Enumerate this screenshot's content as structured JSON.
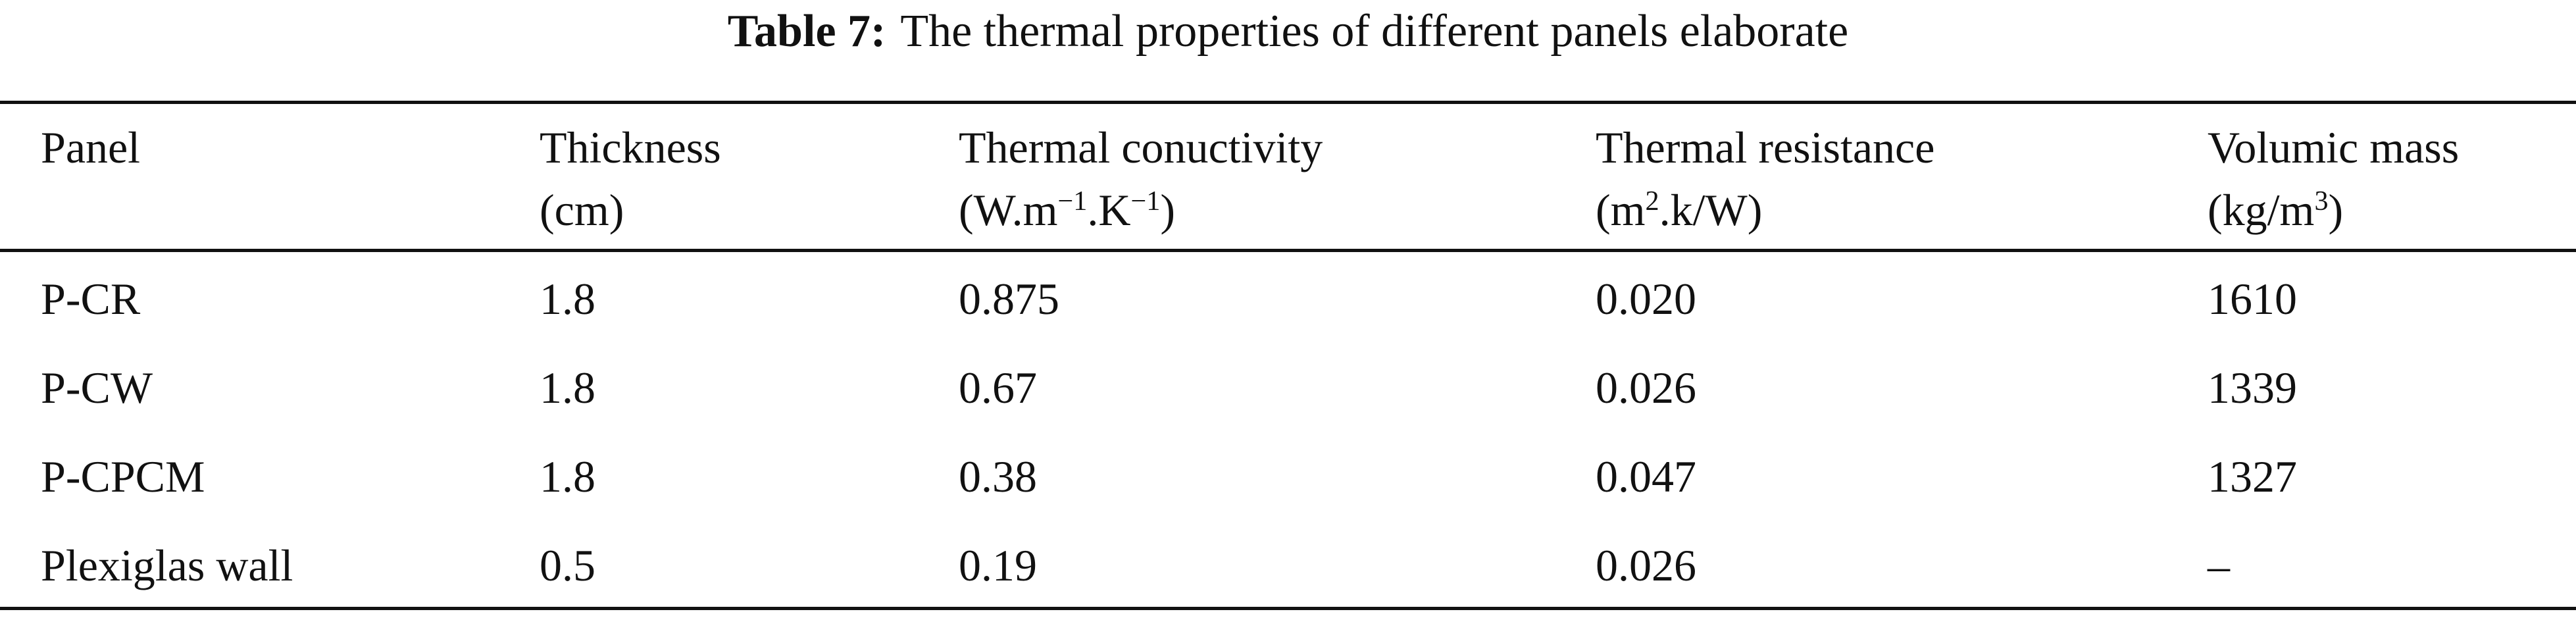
{
  "caption": {
    "label": "Table 7:",
    "text": "The thermal properties of different panels elaborate"
  },
  "table": {
    "header": [
      {
        "name": "Panel"
      },
      {
        "name": "Thickness",
        "unit": [
          "(cm)"
        ]
      },
      {
        "name": "Thermal conuctivity",
        "unit": [
          "(W.m",
          "−1",
          ".K",
          "−1",
          ")"
        ]
      },
      {
        "name": "Thermal resistance",
        "unit": [
          "(m",
          "2",
          ".k/W)"
        ]
      },
      {
        "name": "Volumic mass",
        "unit": [
          "(kg/m",
          "3",
          ")"
        ]
      }
    ],
    "rows": [
      [
        "P-CR",
        "1.8",
        "0.875",
        "0.020",
        "1610"
      ],
      [
        "P-CW",
        "1.8",
        "0.67",
        "0.026",
        "1339"
      ],
      [
        "P-CPCM",
        "1.8",
        "0.38",
        "0.047",
        "1327"
      ],
      [
        "Plexiglas wall",
        "0.5",
        "0.19",
        "0.026",
        "–"
      ]
    ]
  }
}
